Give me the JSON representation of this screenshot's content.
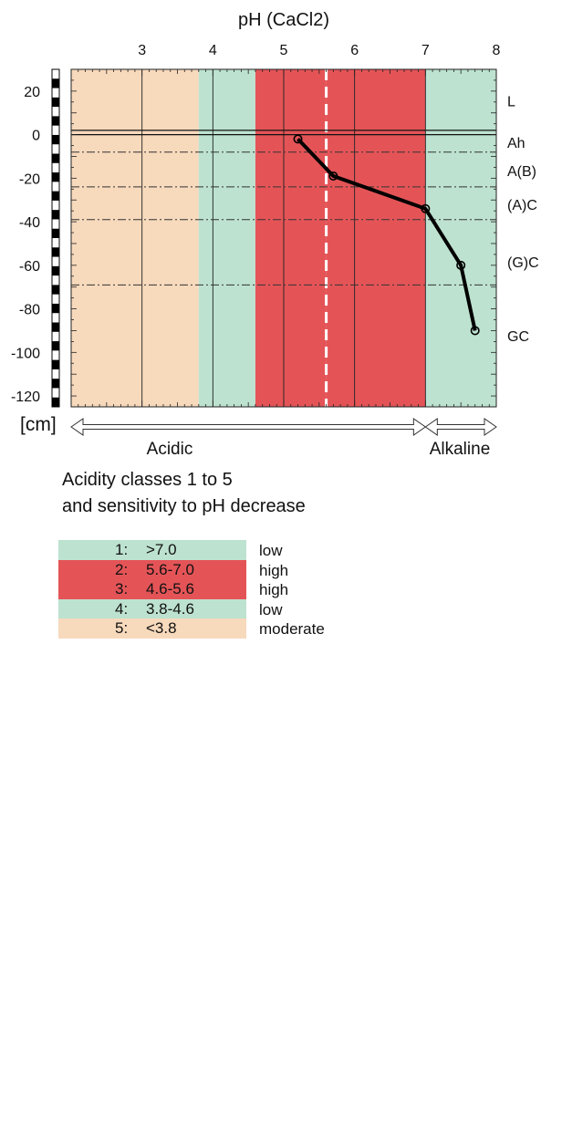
{
  "chart_data": {
    "type": "line",
    "title": "pH (CaCl2)",
    "x_ticks": [
      "3",
      "4",
      "5",
      "6",
      "7",
      "8"
    ],
    "xlim": [
      2.0,
      8.0
    ],
    "y_unit_label": "[cm]",
    "y_ticks": [
      "20",
      "0",
      "-20",
      "-40",
      "-60",
      "-80",
      "-100",
      "-120"
    ],
    "ylim": [
      -125,
      30
    ],
    "acidity_bands": [
      {
        "class": "5",
        "from": 2.0,
        "to": 3.8,
        "color": "#f7d9bc"
      },
      {
        "class": "4",
        "from": 3.8,
        "to": 4.6,
        "color": "#bde2d0"
      },
      {
        "class": "3",
        "from": 4.6,
        "to": 5.6,
        "color": "#e45457"
      },
      {
        "class": "2",
        "from": 5.6,
        "to": 7.0,
        "color": "#e45457"
      },
      {
        "class": "1",
        "from": 7.0,
        "to": 8.0,
        "color": "#bde2d0"
      }
    ],
    "dashed_boundary_ph": 5.6,
    "horizon_boundaries_depth": [
      2,
      -8,
      -24,
      -39,
      -69
    ],
    "soil_horizons": [
      "L",
      "Ah",
      "A(B)",
      "(A)C",
      "(G)C",
      "GC"
    ],
    "series": [
      {
        "x": [
          5.2,
          5.7,
          7.0,
          7.5,
          7.7
        ],
        "y": [
          -2,
          -19,
          -34,
          -60,
          -90
        ]
      }
    ],
    "ph_scale_labels": {
      "acidic": "Acidic",
      "alkaline": "Alkaline"
    },
    "acidic_alkaline_split_ph": 7.0,
    "grid": true
  },
  "caption": {
    "line1": "Acidity classes 1 to 5",
    "line2": "and sensitivity to pH decrease"
  },
  "legend": [
    {
      "num": "1:",
      "range": ">7.0",
      "sensitivity": "low",
      "color": "#bde2d0"
    },
    {
      "num": "2:",
      "range": "5.6-7.0",
      "sensitivity": "high",
      "color": "#e45457"
    },
    {
      "num": "3:",
      "range": "4.6-5.6",
      "sensitivity": "high",
      "color": "#e45457"
    },
    {
      "num": "4:",
      "range": "3.8-4.6",
      "sensitivity": "low",
      "color": "#bde2d0"
    },
    {
      "num": "5:",
      "range": "<3.8",
      "sensitivity": "moderate",
      "color": "#f7d9bc"
    }
  ]
}
